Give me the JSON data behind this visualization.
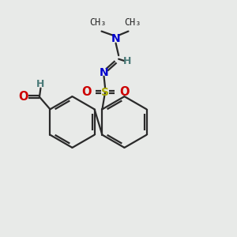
{
  "bg_color": "#e8eae8",
  "bond_color": "#2a2a2a",
  "oxygen_color": "#cc0000",
  "nitrogen_color": "#0000cc",
  "sulfur_color": "#aaaa00",
  "hydrogen_color": "#4a7a78",
  "lw": 1.6,
  "dbl_sep": 0.1,
  "fig_w": 3.0,
  "fig_h": 3.0,
  "dpi": 100,
  "xlim": [
    0,
    10
  ],
  "ylim": [
    0,
    10
  ],
  "r_ring": 1.08
}
